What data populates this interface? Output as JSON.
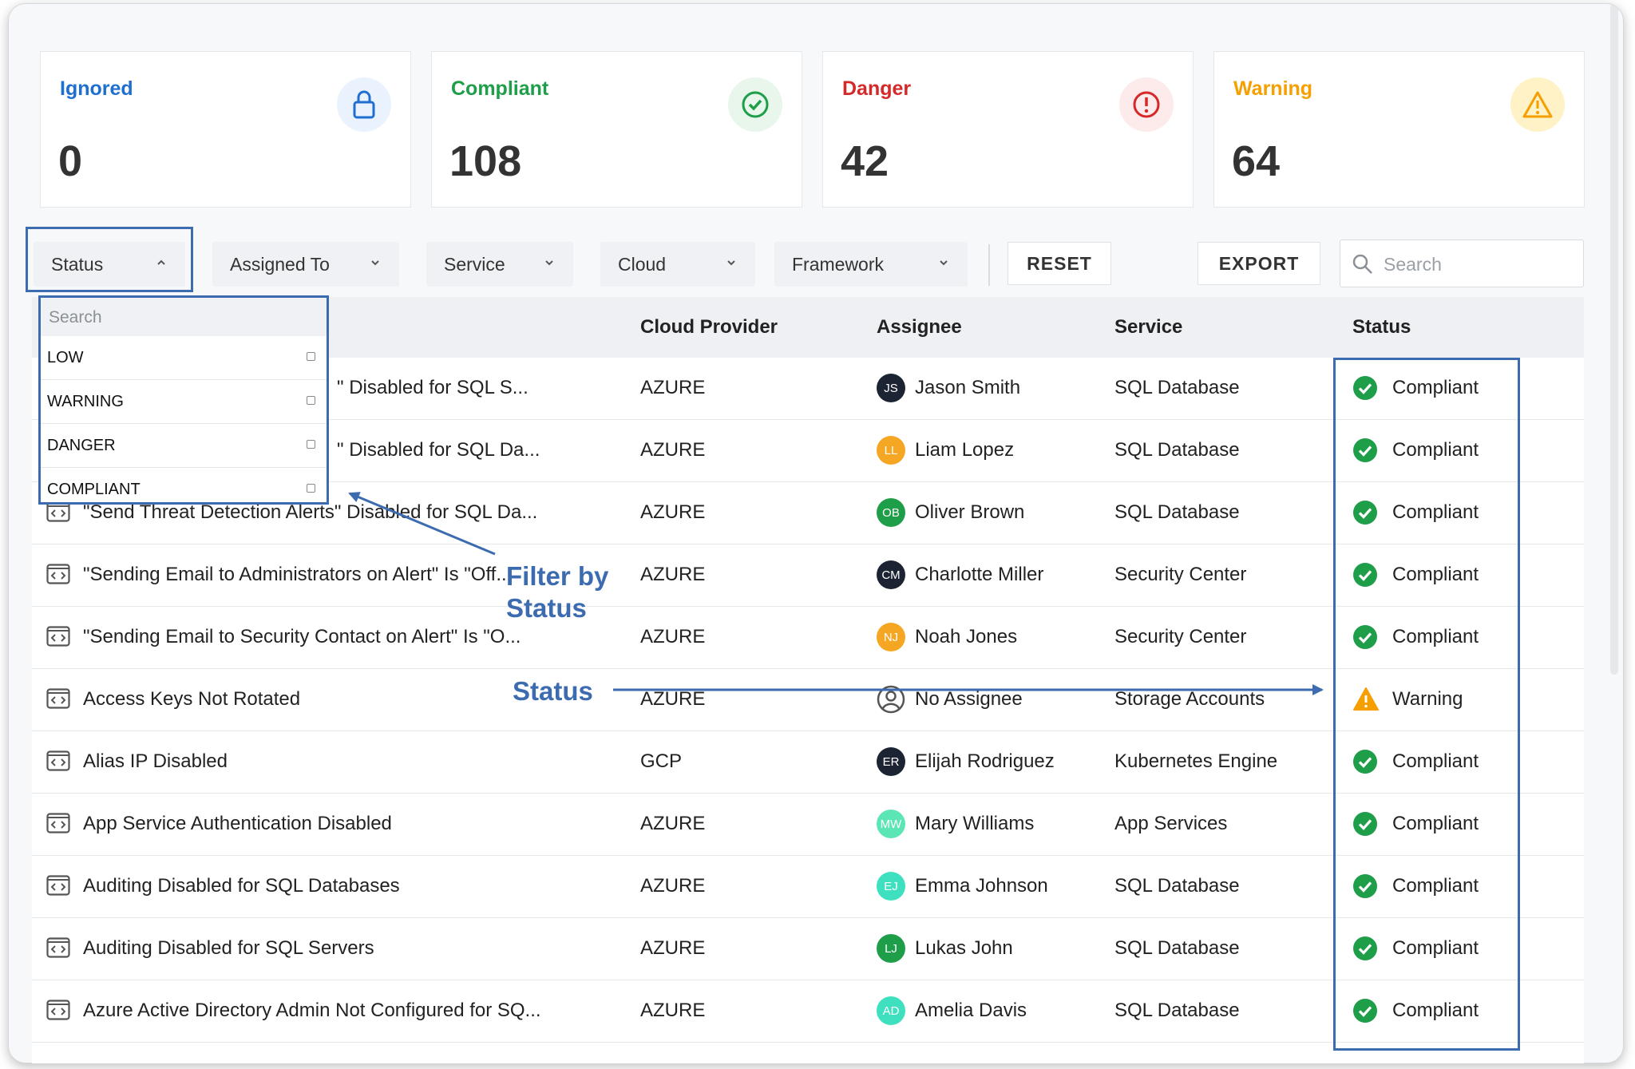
{
  "cards": [
    {
      "label": "Ignored",
      "value": "0",
      "color": "#1f6fd1",
      "icon": "lock-icon",
      "icon_bg": "#eaf2fd"
    },
    {
      "label": "Compliant",
      "value": "108",
      "color": "#1e9e48",
      "icon": "check-circle-icon",
      "icon_bg": "#e8f6ec"
    },
    {
      "label": "Danger",
      "value": "42",
      "color": "#d62828",
      "icon": "alert-circle-icon",
      "icon_bg": "#fdeaea"
    },
    {
      "label": "Warning",
      "value": "64",
      "color": "#f59f00",
      "icon": "warning-triangle-icon",
      "icon_bg": "#fff2c6"
    }
  ],
  "filters": {
    "status": "Status",
    "assigned_to": "Assigned To",
    "service": "Service",
    "cloud": "Cloud",
    "framework": "Framework"
  },
  "buttons": {
    "reset": "RESET",
    "export": "EXPORT"
  },
  "search": {
    "placeholder": "Search"
  },
  "dropdown": {
    "search_placeholder": "Search",
    "options": [
      "LOW",
      "WARNING",
      "DANGER",
      "COMPLIANT"
    ]
  },
  "table": {
    "headers": {
      "cloud_provider": "Cloud Provider",
      "assignee": "Assignee",
      "service": "Service",
      "status": "Status"
    },
    "rows": [
      {
        "name": "\" Disabled for SQL S...",
        "cloud": "AZURE",
        "initials": "JS",
        "assignee": "Jason Smith",
        "avatar_color": "#1c2333",
        "service": "SQL Database",
        "status": "Compliant"
      },
      {
        "name": "\" Disabled for SQL Da...",
        "cloud": "AZURE",
        "initials": "LL",
        "assignee": "Liam Lopez",
        "avatar_color": "#f5a623",
        "service": "SQL Database",
        "status": "Compliant"
      },
      {
        "name": "\"Send Threat Detection Alerts\" Disabled for SQL Da...",
        "cloud": "AZURE",
        "initials": "OB",
        "assignee": "Oliver Brown",
        "avatar_color": "#1e9e48",
        "service": "SQL Database",
        "status": "Compliant"
      },
      {
        "name": "\"Sending Email to Administrators on Alert\" Is \"Off...",
        "cloud": "AZURE",
        "initials": "CM",
        "assignee": "Charlotte Miller",
        "avatar_color": "#1c2333",
        "service": "Security Center",
        "status": "Compliant"
      },
      {
        "name": "\"Sending Email to Security Contact on Alert\" Is \"O...",
        "cloud": "AZURE",
        "initials": "NJ",
        "assignee": "Noah Jones",
        "avatar_color": "#f5a623",
        "service": "Security Center",
        "status": "Compliant"
      },
      {
        "name": "Access Keys Not Rotated",
        "cloud": "AZURE",
        "initials": "",
        "assignee": "No Assignee",
        "avatar_color": "",
        "service": "Storage Accounts",
        "status": "Warning"
      },
      {
        "name": "Alias IP Disabled",
        "cloud": "GCP",
        "initials": "ER",
        "assignee": "Elijah Rodriguez",
        "avatar_color": "#1c2333",
        "service": "Kubernetes Engine",
        "status": "Compliant"
      },
      {
        "name": "App Service Authentication Disabled",
        "cloud": "AZURE",
        "initials": "MW",
        "assignee": "Mary Williams",
        "avatar_color": "#5ce6b5",
        "service": "App Services",
        "status": "Compliant"
      },
      {
        "name": "Auditing Disabled for SQL Databases",
        "cloud": "AZURE",
        "initials": "EJ",
        "assignee": "Emma Johnson",
        "avatar_color": "#3ee0c0",
        "service": "SQL Database",
        "status": "Compliant"
      },
      {
        "name": "Auditing Disabled for SQL Servers",
        "cloud": "AZURE",
        "initials": "LJ",
        "assignee": "Lukas John",
        "avatar_color": "#1e9e48",
        "service": "SQL Database",
        "status": "Compliant"
      },
      {
        "name": "Azure Active Directory Admin Not Configured for SQ...",
        "cloud": "AZURE",
        "initials": "AD",
        "assignee": "Amelia Davis",
        "avatar_color": "#3ee0c0",
        "service": "SQL Database",
        "status": "Compliant"
      }
    ]
  },
  "annotations": {
    "filter_line1": "Filter by",
    "filter_line2": "Status",
    "status": "Status"
  },
  "colors": {
    "annotation": "#3c6bb0",
    "compliant": "#1e9e48",
    "warning": "#f59f00"
  }
}
